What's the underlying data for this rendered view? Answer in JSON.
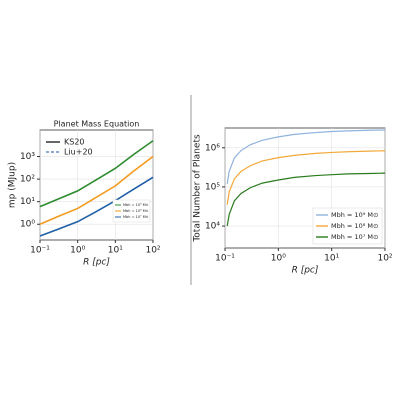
{
  "chart_data": [
    {
      "type": "line",
      "title": "Planet Mass Equation",
      "xlabel": "R [pc]",
      "ylabel": "mp (MJup)",
      "log_x": true,
      "log_y": true,
      "grid": true,
      "x": [
        0.1,
        0.3,
        1,
        3,
        10,
        30,
        100
      ],
      "xlim": [
        0.1,
        100
      ],
      "xticks": [
        {
          "value": 0.1,
          "label": "10⁻¹"
        },
        {
          "value": 1,
          "label": "10⁰"
        },
        {
          "value": 10,
          "label": "10¹"
        },
        {
          "value": 100,
          "label": "10²"
        }
      ],
      "ylim": [
        0.2,
        15000
      ],
      "yticks": [
        {
          "value": 1,
          "label": "10⁰"
        },
        {
          "value": 10,
          "label": "10¹"
        },
        {
          "value": 100,
          "label": "10²"
        },
        {
          "value": 1000,
          "label": "10³"
        }
      ],
      "legend_entries": [
        {
          "label": "KS20",
          "color": "#000000",
          "style": "solid"
        },
        {
          "label": "Liu+20",
          "color": "#4a78b8",
          "style": "dashed"
        }
      ],
      "series": [
        {
          "name": "Mbh = 10⁹ M⊙",
          "color": "#2e8b2e",
          "values": [
            6,
            13,
            30,
            90,
            300,
            1200,
            5000
          ]
        },
        {
          "name": "Mbh = 10⁸ M⊙",
          "color": "#f39a1e",
          "values": [
            1,
            2.2,
            5,
            15,
            50,
            220,
            1000
          ]
        },
        {
          "name": "Mbh = 10⁷ M⊙",
          "color": "#1f5fa8",
          "values": [
            0.3,
            0.6,
            1.3,
            3.5,
            11,
            35,
            120
          ]
        }
      ]
    },
    {
      "type": "line",
      "xlabel": "R [pc]",
      "ylabel": "Total Number of Planets",
      "log_x": true,
      "log_y": true,
      "grid": true,
      "x": [
        0.11,
        0.12,
        0.15,
        0.2,
        0.3,
        0.5,
        1,
        2,
        5,
        10,
        20,
        50,
        100
      ],
      "xlim": [
        0.1,
        100
      ],
      "xticks": [
        {
          "value": 0.1,
          "label": "10⁻¹"
        },
        {
          "value": 1,
          "label": "10⁰"
        },
        {
          "value": 10,
          "label": "10¹"
        },
        {
          "value": 100,
          "label": "10²"
        }
      ],
      "ylim": [
        2750,
        3200000
      ],
      "yticks": [
        {
          "value": 10000,
          "label": "10⁴"
        },
        {
          "value": 100000,
          "label": "10⁵"
        },
        {
          "value": 1000000,
          "label": "10⁶"
        }
      ],
      "series": [
        {
          "name": "Mbh = 10⁹ M⊙",
          "color": "#8fb3dd",
          "values": [
            120000,
            250000,
            550000,
            850000,
            1200000,
            1550000,
            1900000,
            2200000,
            2450000,
            2600000,
            2700000,
            2800000,
            2850000
          ]
        },
        {
          "name": "Mbh = 10⁸ M⊙",
          "color": "#f3a83a",
          "values": [
            35000,
            75000,
            160000,
            250000,
            350000,
            460000,
            560000,
            640000,
            720000,
            760000,
            790000,
            820000,
            840000
          ]
        },
        {
          "name": "Mbh = 10⁷ M⊙",
          "color": "#2a7a1e",
          "values": [
            10000,
            20000,
            44000,
            68000,
            96000,
            125000,
            150000,
            175000,
            195000,
            205000,
            215000,
            220000,
            225000
          ]
        }
      ]
    }
  ]
}
